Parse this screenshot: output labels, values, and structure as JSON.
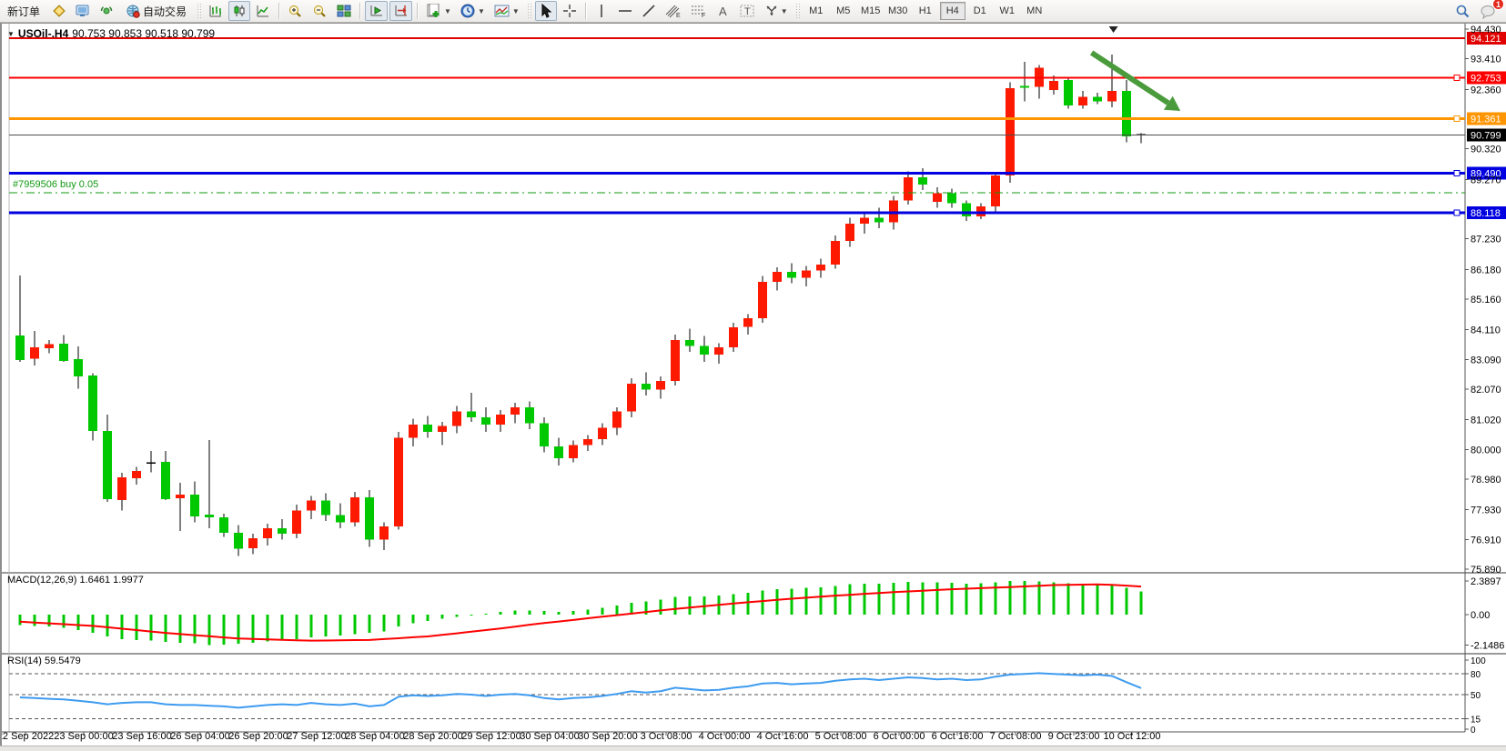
{
  "toolbar": {
    "new_order_label": "新订单",
    "autotrading_label": "自动交易",
    "timeframes": [
      "M1",
      "M5",
      "M15",
      "M30",
      "H1",
      "H4",
      "D1",
      "W1",
      "MN"
    ],
    "active_timeframe": "H4",
    "notifications_badge": "1"
  },
  "chart": {
    "symbol_period": "USOil-.H4",
    "ohlc_readout": "90.753 90.853 90.518 90.799",
    "position_label": "#7959506 buy 0.05"
  },
  "indicator_panes": {
    "macd_label": "MACD(12,26,9)",
    "macd_values": "1.6461 1.9977",
    "rsi_label": "RSI(14)",
    "rsi_value": "59.5479"
  },
  "chart_data": {
    "type": "candlestick",
    "title": "USOil-.H4 90.753 90.853 90.518 90.799",
    "price_range": [
      75.89,
      94.43
    ],
    "colors": {
      "up": "#FE1A00",
      "down": "#00C800",
      "wick": "#000000",
      "macd_hist": "#00C800",
      "macd_signal": "#FF0000",
      "rsi_line": "#3E9BF0",
      "arrow": "#4A9B3C"
    },
    "candles_ohlc": [
      [
        83.91,
        85.97,
        83.0,
        83.07
      ],
      [
        83.12,
        84.07,
        82.88,
        83.5
      ],
      [
        83.47,
        83.75,
        83.3,
        83.62
      ],
      [
        83.63,
        83.93,
        83.0,
        83.04
      ],
      [
        83.1,
        83.54,
        82.08,
        82.51
      ],
      [
        82.54,
        82.62,
        80.3,
        80.63
      ],
      [
        80.64,
        81.2,
        78.2,
        78.3
      ],
      [
        78.26,
        79.2,
        77.9,
        79.04
      ],
      [
        79.01,
        79.4,
        78.8,
        79.26
      ],
      [
        79.54,
        79.94,
        79.22,
        79.52
      ],
      [
        79.57,
        79.94,
        78.26,
        78.3
      ],
      [
        78.32,
        78.85,
        77.2,
        78.45
      ],
      [
        78.45,
        78.9,
        77.5,
        77.7
      ],
      [
        77.76,
        80.32,
        77.29,
        77.67
      ],
      [
        77.67,
        77.8,
        77.0,
        77.14
      ],
      [
        77.14,
        77.4,
        76.35,
        76.6
      ],
      [
        76.6,
        77.1,
        76.4,
        76.95
      ],
      [
        76.95,
        77.45,
        76.7,
        77.3
      ],
      [
        77.3,
        77.6,
        76.9,
        77.1
      ],
      [
        77.1,
        78.1,
        76.95,
        77.9
      ],
      [
        77.9,
        78.4,
        77.6,
        78.25
      ],
      [
        78.25,
        78.5,
        77.55,
        77.75
      ],
      [
        77.75,
        78.15,
        77.3,
        77.5
      ],
      [
        77.5,
        78.55,
        77.35,
        78.35
      ],
      [
        78.35,
        78.6,
        76.65,
        76.9
      ],
      [
        76.9,
        77.5,
        76.55,
        77.35
      ],
      [
        77.35,
        80.6,
        77.25,
        80.4
      ],
      [
        80.4,
        81.05,
        80.1,
        80.85
      ],
      [
        80.85,
        81.15,
        80.4,
        80.6
      ],
      [
        80.6,
        80.95,
        80.15,
        80.8
      ],
      [
        80.8,
        81.5,
        80.55,
        81.3
      ],
      [
        81.3,
        81.95,
        80.95,
        81.1
      ],
      [
        81.1,
        81.45,
        80.6,
        80.85
      ],
      [
        80.85,
        81.35,
        80.6,
        81.2
      ],
      [
        81.2,
        81.6,
        80.9,
        81.45
      ],
      [
        81.45,
        81.65,
        80.7,
        80.9
      ],
      [
        80.9,
        81.1,
        79.9,
        80.1
      ],
      [
        80.1,
        80.4,
        79.45,
        79.7
      ],
      [
        79.7,
        80.3,
        79.55,
        80.15
      ],
      [
        80.15,
        80.5,
        79.95,
        80.35
      ],
      [
        80.35,
        80.9,
        80.15,
        80.75
      ],
      [
        80.75,
        81.45,
        80.5,
        81.3
      ],
      [
        81.3,
        82.45,
        81.1,
        82.25
      ],
      [
        82.25,
        82.65,
        81.85,
        82.05
      ],
      [
        82.05,
        82.5,
        81.75,
        82.35
      ],
      [
        82.35,
        83.95,
        82.2,
        83.75
      ],
      [
        83.75,
        84.15,
        83.35,
        83.55
      ],
      [
        83.55,
        83.9,
        83.0,
        83.25
      ],
      [
        83.25,
        83.65,
        82.95,
        83.5
      ],
      [
        83.5,
        84.35,
        83.35,
        84.2
      ],
      [
        84.2,
        84.65,
        83.95,
        84.5
      ],
      [
        84.5,
        85.95,
        84.35,
        85.75
      ],
      [
        85.75,
        86.25,
        85.45,
        86.1
      ],
      [
        86.1,
        86.4,
        85.7,
        85.9
      ],
      [
        85.9,
        86.3,
        85.6,
        86.15
      ],
      [
        86.15,
        86.55,
        85.9,
        86.35
      ],
      [
        86.35,
        87.35,
        86.2,
        87.15
      ],
      [
        87.15,
        87.95,
        86.95,
        87.75
      ],
      [
        87.75,
        88.15,
        87.4,
        87.95
      ],
      [
        87.95,
        88.3,
        87.6,
        87.8
      ],
      [
        87.8,
        88.7,
        87.55,
        88.55
      ],
      [
        88.55,
        89.55,
        88.4,
        89.35
      ],
      [
        89.35,
        89.65,
        88.9,
        89.1
      ],
      [
        88.5,
        89.0,
        88.3,
        88.8
      ],
      [
        88.8,
        88.95,
        88.3,
        88.45
      ],
      [
        88.45,
        88.55,
        87.85,
        88.0
      ],
      [
        88.0,
        88.45,
        87.9,
        88.35
      ],
      [
        88.35,
        89.5,
        88.1,
        89.4
      ],
      [
        89.4,
        92.6,
        89.15,
        92.4
      ],
      [
        92.48,
        93.3,
        91.95,
        92.42
      ],
      [
        92.45,
        93.2,
        92.05,
        93.1
      ],
      [
        92.34,
        92.84,
        92.18,
        92.65
      ],
      [
        92.68,
        92.75,
        91.7,
        91.81
      ],
      [
        91.81,
        92.3,
        91.7,
        92.1
      ],
      [
        92.1,
        92.25,
        91.85,
        91.95
      ],
      [
        91.95,
        93.55,
        91.75,
        92.3
      ],
      [
        92.3,
        92.68,
        90.55,
        90.75
      ],
      [
        90.753,
        90.853,
        90.518,
        90.799
      ]
    ],
    "price_axis_ticks": [
      94.43,
      93.41,
      92.36,
      90.32,
      89.27,
      87.23,
      86.18,
      85.16,
      84.11,
      83.09,
      82.07,
      81.02,
      80.0,
      78.98,
      77.93,
      76.91,
      75.89
    ],
    "hlines": [
      {
        "price": 94.121,
        "label": "94.121",
        "color": "#E00000",
        "bg": "#E00000",
        "width": 2,
        "handle": false
      },
      {
        "price": 92.753,
        "label": "92.753",
        "color": "#FF0000",
        "bg": "#FF0000",
        "width": 2,
        "handle": true
      },
      {
        "price": 91.361,
        "label": "91.361",
        "color": "#FF9500",
        "bg": "#FF9500",
        "width": 3,
        "handle": true
      },
      {
        "price": 90.799,
        "label": "90.799",
        "color": "#4d4d4d",
        "bg": "#000000",
        "width": 1,
        "handle": false
      },
      {
        "price": 89.49,
        "label": "89.490",
        "color": "#0000E0",
        "bg": "#0000E0",
        "width": 3,
        "handle": true
      },
      {
        "price": 88.118,
        "label": "88.118",
        "color": "#0000E0",
        "bg": "#0000E0",
        "width": 3,
        "handle": true
      }
    ],
    "trade_line": {
      "price": 88.81,
      "style": "dashdot",
      "color": "#119911",
      "label": "#7959506 buy 0.05"
    },
    "annotations": {
      "arrow": {
        "from_bar": 73.6,
        "from_price": 93.62,
        "to_bar": 79.7,
        "to_price": 91.62
      },
      "top_marker_bar": 75.1
    },
    "time_axis_labels": [
      "22 Sep 2022",
      "23 Sep 00:00",
      "23 Sep 16:00",
      "26 Sep 04:00",
      "26 Sep 20:00",
      "27 Sep 12:00",
      "28 Sep 04:00",
      "28 Sep 20:00",
      "29 Sep 12:00",
      "30 Sep 04:00",
      "30 Sep 20:00",
      "3 Oct 08:00",
      "4 Oct 00:00",
      "4 Oct 16:00",
      "5 Oct 08:00",
      "6 Oct 00:00",
      "6 Oct 16:00",
      "7 Oct 08:00",
      "9 Oct 23:00",
      "10 Oct 12:00"
    ],
    "macd": {
      "params": "12,26,9",
      "axis_ticks": [
        2.3897,
        0.0,
        -2.1486
      ],
      "histogram": [
        -0.75,
        -0.8,
        -0.85,
        -0.95,
        -1.1,
        -1.3,
        -1.55,
        -1.75,
        -1.8,
        -1.85,
        -1.95,
        -2.0,
        -2.05,
        -2.15,
        -2.12,
        -2.08,
        -2.0,
        -1.92,
        -1.85,
        -1.75,
        -1.62,
        -1.55,
        -1.5,
        -1.38,
        -1.3,
        -1.18,
        -0.85,
        -0.6,
        -0.45,
        -0.3,
        -0.15,
        -0.05,
        0.08,
        0.18,
        0.28,
        0.3,
        0.25,
        0.2,
        0.25,
        0.35,
        0.5,
        0.65,
        0.85,
        0.95,
        1.05,
        1.25,
        1.3,
        1.3,
        1.35,
        1.45,
        1.55,
        1.7,
        1.8,
        1.85,
        1.9,
        1.95,
        2.05,
        2.15,
        2.2,
        2.2,
        2.25,
        2.32,
        2.3,
        2.28,
        2.25,
        2.2,
        2.22,
        2.3,
        2.39,
        2.38,
        2.36,
        2.3,
        2.22,
        2.18,
        2.15,
        2.1,
        1.9,
        1.6461
      ],
      "signal": [
        -0.5,
        -0.56,
        -0.62,
        -0.68,
        -0.74,
        -0.8,
        -0.9,
        -1.0,
        -1.1,
        -1.2,
        -1.3,
        -1.38,
        -1.46,
        -1.54,
        -1.62,
        -1.7,
        -1.73,
        -1.76,
        -1.79,
        -1.82,
        -1.85,
        -1.84,
        -1.83,
        -1.81,
        -1.8,
        -1.74,
        -1.68,
        -1.61,
        -1.55,
        -1.44,
        -1.33,
        -1.21,
        -1.1,
        -0.98,
        -0.85,
        -0.72,
        -0.6,
        -0.49,
        -0.38,
        -0.26,
        -0.15,
        -0.04,
        0.07,
        0.19,
        0.3,
        0.4,
        0.5,
        0.6,
        0.7,
        0.79,
        0.88,
        0.96,
        1.05,
        1.13,
        1.2,
        1.28,
        1.35,
        1.41,
        1.48,
        1.54,
        1.6,
        1.65,
        1.7,
        1.75,
        1.8,
        1.84,
        1.88,
        1.92,
        1.95,
        2.0,
        2.05,
        2.1,
        2.12,
        2.13,
        2.15,
        2.12,
        2.06,
        1.9977
      ]
    },
    "rsi": {
      "params": "14",
      "axis_ticks": [
        100,
        80,
        50,
        15,
        0
      ],
      "levels": [
        80,
        50,
        15
      ],
      "values": [
        46,
        45,
        44,
        43,
        41,
        39,
        36,
        38,
        39,
        39,
        36,
        35,
        35,
        34,
        33,
        31,
        33,
        35,
        36,
        35,
        38,
        36,
        35,
        37,
        33,
        35,
        47,
        49,
        48,
        49,
        51,
        50,
        48,
        50,
        51,
        49,
        45,
        43,
        45,
        46,
        48,
        51,
        55,
        53,
        55,
        60,
        58,
        56,
        57,
        60,
        62,
        66,
        67,
        65,
        66,
        67,
        70,
        72,
        73,
        71,
        73,
        75,
        74,
        72,
        73,
        71,
        72,
        76,
        79,
        80,
        81,
        80,
        79,
        78,
        79,
        77,
        68,
        59.5
      ]
    }
  }
}
